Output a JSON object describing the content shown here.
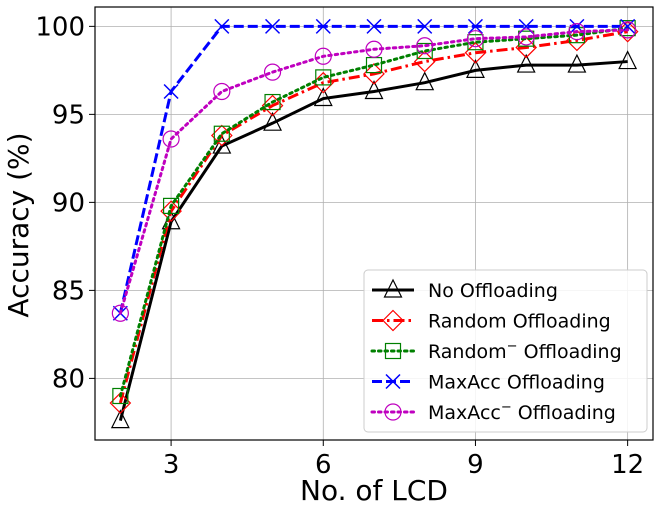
{
  "chart_data": {
    "type": "line",
    "xlabel": "No. of LCD",
    "ylabel": "Accuracy (%)",
    "xlim": [
      1.5,
      12.5
    ],
    "ylim": [
      76.5,
      101.1
    ],
    "xticks": [
      3,
      6,
      9,
      12
    ],
    "yticks": [
      80,
      85,
      90,
      95,
      100
    ],
    "grid": true,
    "legend_position": "lower-right",
    "x": [
      2,
      3,
      4,
      5,
      6,
      7,
      8,
      9,
      10,
      11,
      12
    ],
    "series": [
      {
        "name": "No Offloading",
        "color": "#000000",
        "linestyle": "solid",
        "marker": "triangle",
        "values": [
          77.6,
          88.9,
          93.2,
          94.5,
          95.9,
          96.3,
          96.8,
          97.5,
          97.8,
          97.8,
          98.0
        ]
      },
      {
        "name": "Random Offloading",
        "color": "#ff0000",
        "linestyle": "dashdot",
        "marker": "diamond",
        "values": [
          78.6,
          89.5,
          93.8,
          95.5,
          96.8,
          97.3,
          98.0,
          98.5,
          98.8,
          99.2,
          99.7
        ]
      },
      {
        "name": "Random",
        "name_suffix": " Offloading",
        "superscript": "−",
        "color": "#008000",
        "linestyle": "dotted",
        "marker": "square",
        "values": [
          79.0,
          89.8,
          93.9,
          95.7,
          97.1,
          97.8,
          98.6,
          99.1,
          99.3,
          99.5,
          99.9
        ]
      },
      {
        "name": "MaxAcc Offloading",
        "color": "#0000ff",
        "linestyle": "dashed",
        "marker": "x",
        "values": [
          83.7,
          96.3,
          100,
          100,
          100,
          100,
          100,
          100,
          100,
          100,
          100
        ]
      },
      {
        "name": "MaxAcc",
        "name_suffix": " Offloading",
        "superscript": "−",
        "color": "#bf00bf",
        "linestyle": "dotted",
        "marker": "circle",
        "values": [
          83.7,
          93.6,
          96.3,
          97.4,
          98.3,
          98.7,
          98.9,
          99.3,
          99.4,
          99.7,
          99.8
        ]
      }
    ]
  }
}
